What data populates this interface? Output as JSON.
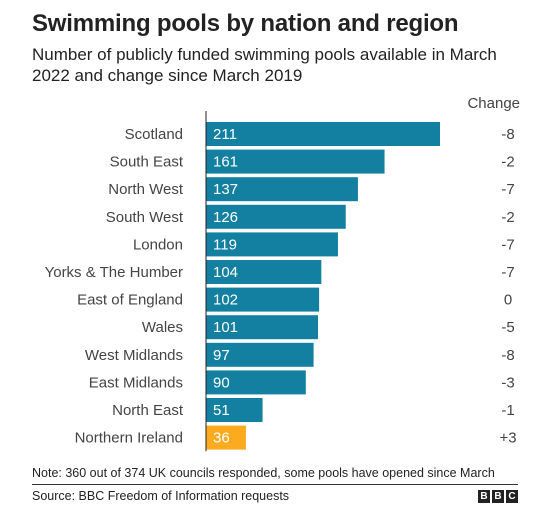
{
  "title": "Swimming pools by nation and region",
  "subtitle": "Number of publicly funded swimming pools available in March 2022 and change since March 2019",
  "change_header": "Change",
  "note": "Note: 360 out of 374 UK councils responded, some pools have opened since March",
  "source": "Source: BBC Freedom of Information requests",
  "logo": [
    "B",
    "B",
    "C"
  ],
  "colors": {
    "bar": "#1380a1",
    "highlight": "#fcab1f",
    "bar_text": "#ffffff",
    "axis": "#222222"
  },
  "chart_data": {
    "type": "bar",
    "orientation": "horizontal",
    "categories": [
      "Scotland",
      "South East",
      "North West",
      "South West",
      "London",
      "Yorks & The Humber",
      "East of England",
      "Wales",
      "West Midlands",
      "East Midlands",
      "North East",
      "Northern Ireland"
    ],
    "values": [
      211,
      161,
      137,
      126,
      119,
      104,
      102,
      101,
      97,
      90,
      51,
      36
    ],
    "change": [
      "-8",
      "-2",
      "-7",
      "-2",
      "-7",
      "-7",
      "0",
      "-5",
      "-8",
      "-3",
      "-1",
      "+3"
    ],
    "highlight": [
      "Northern Ireland"
    ],
    "xlim": [
      0,
      211
    ],
    "grid": false
  }
}
